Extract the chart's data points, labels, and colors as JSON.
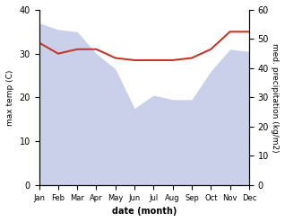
{
  "months": [
    "Jan",
    "Feb",
    "Mar",
    "Apr",
    "May",
    "Jun",
    "Jul",
    "Aug",
    "Sep",
    "Oct",
    "Nov",
    "Dec"
  ],
  "temp_max": [
    32.5,
    30.0,
    31.0,
    31.0,
    29.0,
    28.5,
    28.5,
    28.5,
    29.0,
    31.0,
    35.0,
    35.0
  ],
  "precipitation_left_scale": [
    37.0,
    35.5,
    35.0,
    30.0,
    26.5,
    17.5,
    20.5,
    19.5,
    19.5,
    26.0,
    31.0,
    30.5
  ],
  "temp_ylim": [
    0,
    40
  ],
  "precip_ylim": [
    0,
    60
  ],
  "temp_color": "#c0392b",
  "precip_fill_color": "#b0b8e0",
  "precip_fill_alpha": 0.65,
  "xlabel": "date (month)",
  "ylabel_left": "max temp (C)",
  "ylabel_right": "med. precipitation (kg/m2)",
  "background_color": "#ffffff",
  "temp_linewidth": 1.5
}
